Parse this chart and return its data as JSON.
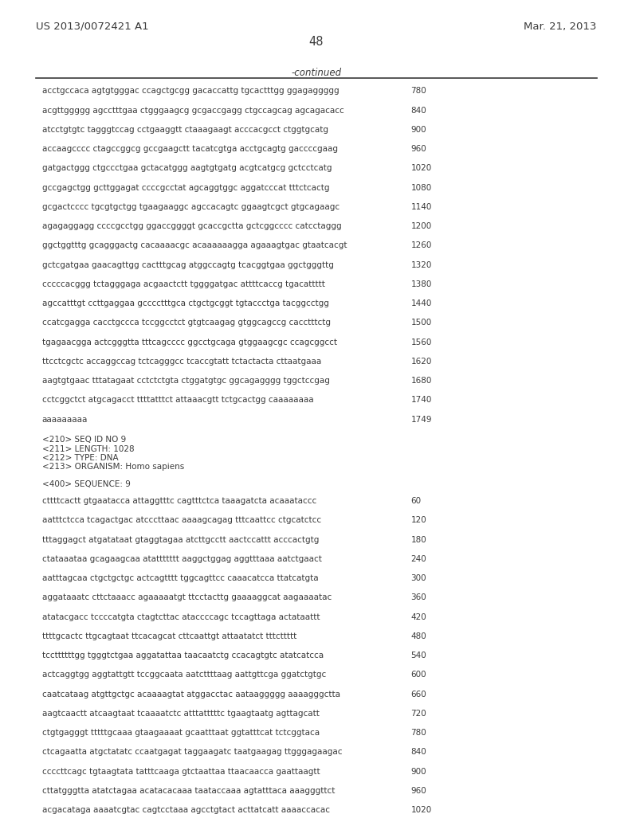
{
  "header_left": "US 2013/0072421 A1",
  "header_right": "Mar. 21, 2013",
  "page_number": "48",
  "continued_label": "-continued",
  "background_color": "#ffffff",
  "text_color": "#3a3a3a",
  "sequence_lines_top": [
    [
      "acctgccaca agtgtgggac ccagctgcgg gacaccattg tgcactttgg ggagaggggg",
      "780"
    ],
    [
      "acgttggggg agcctttgaa ctgggaagcg gcgaccgagg ctgccagcag agcagacacc",
      "840"
    ],
    [
      "atcctgtgtc tagggtccag cctgaaggtt ctaaagaagt acccacgcct ctggtgcatg",
      "900"
    ],
    [
      "accaagcccc ctagccggcg gccgaagctt tacatcgtga acctgcagtg gaccccgaag",
      "960"
    ],
    [
      "gatgactggg ctgccctgaa gctacatggg aagtgtgatg acgtcatgcg gctcctcatg",
      "1020"
    ],
    [
      "gccgagctgg gcttggagat ccccgcctat agcaggtggc aggatcccat tttctcactg",
      "1080"
    ],
    [
      "gcgactcccc tgcgtgctgg tgaagaaggc agccacagtc ggaagtcgct gtgcagaagc",
      "1140"
    ],
    [
      "agagaggagg ccccgcctgg ggaccggggt gcaccgctta gctcggcccc catcctaggg",
      "1200"
    ],
    [
      "ggctggtttg gcagggactg cacaaaacgc acaaaaaagga agaaagtgac gtaatcacgt",
      "1260"
    ],
    [
      "gctcgatgaa gaacagttgg cactttgcag atggccagtg tcacggtgaa ggctgggttg",
      "1320"
    ],
    [
      "cccccacggg tctagggaga acgaactctt tggggatgac attttcaccg tgacattttt",
      "1380"
    ],
    [
      "agccatttgt ccttgaggaa gcccctttgca ctgctgcggt tgtaccctga tacggcctgg",
      "1440"
    ],
    [
      "ccatcgagga cacctgccca tccggcctct gtgtcaagag gtggcagccg cacctttctg",
      "1500"
    ],
    [
      "tgagaacgga actcgggtta tttcagcccc ggcctgcaga gtggaagcgc ccagcggcct",
      "1560"
    ],
    [
      "ttcctcgctc accaggccag tctcagggcc tcaccgtatt tctactacta cttaatgaaa",
      "1620"
    ],
    [
      "aagtgtgaac tttatagaat cctctctgta ctggatgtgc ggcagagggg tggctccgag",
      "1680"
    ],
    [
      "cctcggctct atgcagacct ttttatttct attaaacgtt tctgcactgg caaaaaaaa",
      "1740"
    ],
    [
      "aaaaaaaaa",
      "1749"
    ]
  ],
  "seq_info_lines": [
    "<210> SEQ ID NO 9",
    "<211> LENGTH: 1028",
    "<212> TYPE: DNA",
    "<213> ORGANISM: Homo sapiens"
  ],
  "seq400_label": "<400> SEQUENCE: 9",
  "sequence_lines_bottom": [
    [
      "cttttcactt gtgaatacca attaggtttc cagtttctca taaagatcta acaaataccc",
      "60"
    ],
    [
      "aatttctcca tcagactgac atcccttaac aaaagcagag tttcaattcc ctgcatctcc",
      "120"
    ],
    [
      "tttaggagct atgatataat gtaggtagaa atcttgcctt aactccattt acccactgtg",
      "180"
    ],
    [
      "ctataaataa gcagaagcaa atattttttt aaggctggag aggtttaaa aatctgaact",
      "240"
    ],
    [
      "aatttagcaa ctgctgctgc actcagtttt tggcagttcc caaacatcca ttatcatgta",
      "300"
    ],
    [
      "aggataaatc cttctaaacc agaaaaatgt ttcctacttg gaaaaggcat aagaaaatac",
      "360"
    ],
    [
      "atatacgacc tccccatgta ctagtcttac ataccccagc tccagttaga actataattt",
      "420"
    ],
    [
      "ttttgcactc ttgcagtaat ttcacagcat cttcaattgt attaatatct tttcttttt",
      "480"
    ],
    [
      "tccttttttgg tgggtctgaa aggatattaa taacaatctg ccacagtgtc atatcatcca",
      "540"
    ],
    [
      "actcaggtgg aggtattgtt tccggcaata aatcttttaag aattgttcga ggatctgtgc",
      "600"
    ],
    [
      "caatcataag atgttgctgc acaaaagtat atggacctac aataaggggg aaaagggctta",
      "660"
    ],
    [
      "aagtcaactt atcaagtaat tcaaaatctc atttatttttc tgaagtaatg agttagcatt",
      "720"
    ],
    [
      "ctgtgagggt tttttgcaaa gtaagaaaat gcaatttaat ggtatttcat tctcggtaca",
      "780"
    ],
    [
      "ctcagaatta atgctatatc ccaatgagat taggaagatc taatgaagag ttgggagaagac",
      "840"
    ],
    [
      "ccccttcagc tgtaagtata tatttcaaga gtctaattaa ttaacaacca gaattaagtt",
      "900"
    ],
    [
      "cttatgggtta atatctagaa acatacacaaa taataccaaa agtatttaca aaagggttct",
      "960"
    ],
    [
      "acgacataga aaaatcgtac cagtcctaaa agcctgtact acttatcatt aaaaccacac",
      "1020"
    ]
  ]
}
